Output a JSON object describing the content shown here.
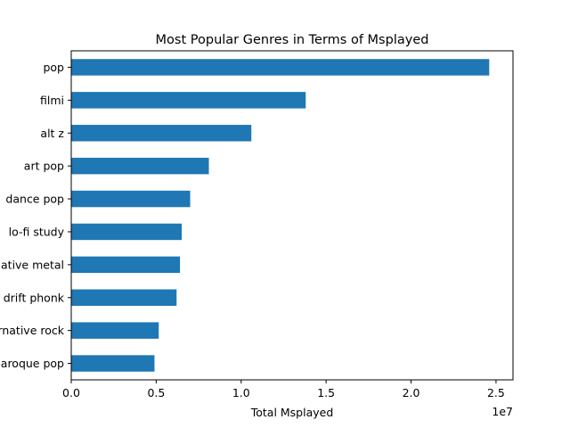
{
  "chart_data": {
    "type": "bar",
    "orientation": "horizontal",
    "title": "Most Popular Genres in Terms of Msplayed",
    "xlabel": "Total Msplayed",
    "ylabel": "",
    "x_scale_label": "1e7",
    "categories": [
      "pop",
      "filmi",
      "alt z",
      "art pop",
      "dance pop",
      "lo-fi study",
      "alternative metal",
      "drift phonk",
      "alternative rock",
      "baroque pop"
    ],
    "values": [
      24600000,
      13800000,
      10600000,
      8100000,
      7000000,
      6500000,
      6400000,
      6200000,
      5150000,
      4900000
    ],
    "xlim": [
      0,
      26000000
    ],
    "xticks": [
      0,
      5000000,
      10000000,
      15000000,
      20000000,
      25000000
    ],
    "xtick_labels": [
      "0.0",
      "0.5",
      "1.0",
      "1.5",
      "2.0",
      "2.5"
    ],
    "bar_color": "#1f77b4",
    "grid": false,
    "legend": "none"
  }
}
